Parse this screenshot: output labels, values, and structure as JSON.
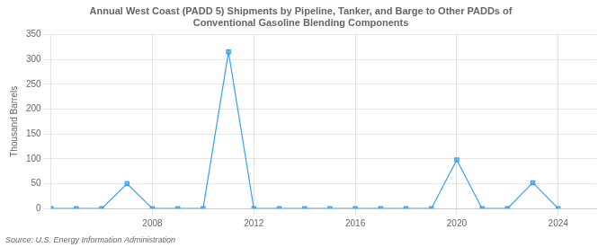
{
  "chart_data": {
    "type": "line",
    "title": "Annual West Coast (PADD 5) Shipments by Pipeline, Tanker, and Barge to Other PADDs of\nConventional Gasoline Blending Components",
    "ylabel": "Thousand Barrels",
    "annotations": [
      "Source: U.S. Energy Information Administration"
    ],
    "x": [
      2004,
      2005,
      2006,
      2007,
      2008,
      2009,
      2010,
      2011,
      2012,
      2013,
      2014,
      2015,
      2016,
      2017,
      2018,
      2019,
      2020,
      2021,
      2022,
      2023,
      2024
    ],
    "values": [
      0,
      0,
      0,
      50,
      0,
      0,
      0,
      315,
      0,
      0,
      0,
      0,
      0,
      0,
      0,
      0,
      98,
      0,
      0,
      52,
      0
    ],
    "marker": "square",
    "xlim": [
      2004.0,
      2025.5
    ],
    "xticks": [
      2008,
      2012,
      2016,
      2020,
      2024
    ],
    "ylim": [
      0,
      350
    ],
    "yticks": [
      0,
      50,
      100,
      150,
      200,
      250,
      300,
      350
    ],
    "grid": true
  }
}
